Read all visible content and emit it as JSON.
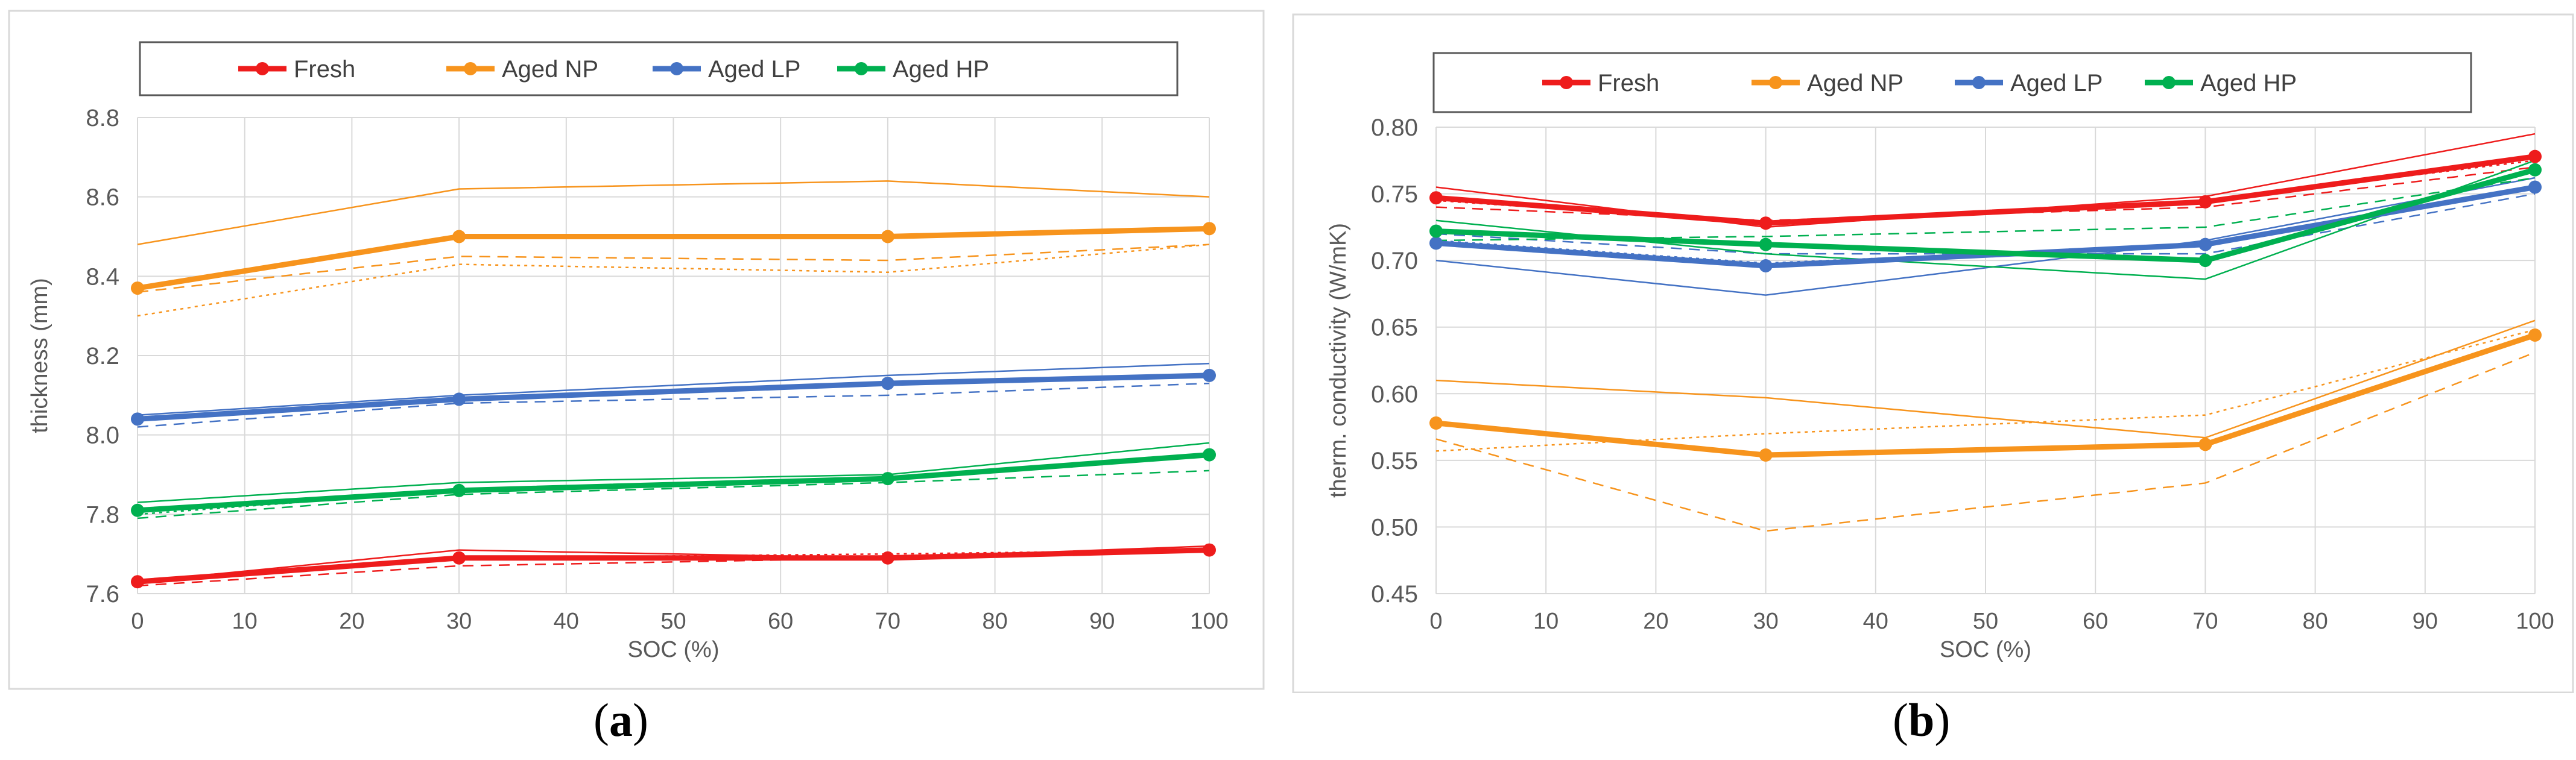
{
  "chart_data": [
    {
      "panel": "a",
      "caption": {
        "open": "(",
        "letter": "a",
        "close": ")"
      },
      "type": "line",
      "title": "",
      "xlabel": "SOC (%)",
      "ylabel": "thickness (mm)",
      "xlim": [
        0,
        100
      ],
      "ylim": [
        7.6,
        8.8
      ],
      "xticks": [
        "0",
        "10",
        "20",
        "30",
        "40",
        "50",
        "60",
        "70",
        "80",
        "90",
        "100"
      ],
      "yticks": [
        "7.6",
        "7.8",
        "8.0",
        "8.2",
        "8.4",
        "8.6",
        "8.8"
      ],
      "grid": true,
      "legend": "top",
      "x": [
        0,
        30,
        70,
        100
      ],
      "series": [
        {
          "name": "Fresh",
          "color": "#ee1c1c",
          "values": [
            7.63,
            7.69,
            7.69,
            7.71
          ],
          "samples": [
            [
              7.63,
              7.71,
              7.69,
              7.72
            ],
            [
              7.62,
              7.67,
              7.69,
              7.71
            ],
            [
              7.63,
              7.69,
              7.7,
              7.71
            ]
          ]
        },
        {
          "name": "Aged NP",
          "color": "#f7941d",
          "values": [
            8.37,
            8.5,
            8.5,
            8.52
          ],
          "samples": [
            [
              8.48,
              8.62,
              8.64,
              8.6
            ],
            [
              8.36,
              8.45,
              8.44,
              8.48
            ],
            [
              8.3,
              8.43,
              8.41,
              8.48
            ]
          ]
        },
        {
          "name": "Aged LP",
          "color": "#4472c4",
          "values": [
            8.04,
            8.09,
            8.13,
            8.15
          ],
          "samples": [
            [
              8.05,
              8.1,
              8.15,
              8.18
            ],
            [
              8.02,
              8.08,
              8.1,
              8.13
            ],
            [
              8.04,
              8.09,
              8.13,
              8.15
            ]
          ]
        },
        {
          "name": "Aged HP",
          "color": "#00b050",
          "values": [
            7.81,
            7.86,
            7.89,
            7.95
          ],
          "samples": [
            [
              7.83,
              7.88,
              7.9,
              7.98
            ],
            [
              7.79,
              7.85,
              7.88,
              7.91
            ],
            [
              7.8,
              7.86,
              7.89,
              7.95
            ]
          ]
        }
      ]
    },
    {
      "panel": "b",
      "caption": {
        "open": "(",
        "letter": "b",
        "close": ")"
      },
      "type": "line",
      "title": "",
      "xlabel": "SOC (%)",
      "ylabel": "therm. conductivity (W/mK)",
      "xlim": [
        0,
        100
      ],
      "ylim": [
        0.45,
        0.8
      ],
      "xticks": [
        "0",
        "10",
        "20",
        "30",
        "40",
        "50",
        "60",
        "70",
        "80",
        "90",
        "100"
      ],
      "yticks": [
        "0.45",
        "0.50",
        "0.55",
        "0.60",
        "0.65",
        "0.70",
        "0.75",
        "0.80"
      ],
      "grid": true,
      "legend": "top",
      "x": [
        0,
        30,
        70,
        100
      ],
      "series": [
        {
          "name": "Fresh",
          "color": "#ee1c1c",
          "values": [
            0.747,
            0.728,
            0.744,
            0.778
          ],
          "samples": [
            [
              0.755,
              0.725,
              0.748,
              0.795
            ],
            [
              0.74,
              0.73,
              0.74,
              0.77
            ],
            [
              0.745,
              0.728,
              0.745,
              0.775
            ]
          ]
        },
        {
          "name": "Aged NP",
          "color": "#f7941d",
          "values": [
            0.578,
            0.554,
            0.562,
            0.644
          ],
          "samples": [
            [
              0.61,
              0.597,
              0.567,
              0.655
            ],
            [
              0.566,
              0.497,
              0.533,
              0.631
            ],
            [
              0.557,
              0.57,
              0.584,
              0.648
            ]
          ]
        },
        {
          "name": "Aged LP",
          "color": "#4472c4",
          "values": [
            0.713,
            0.696,
            0.712,
            0.755
          ],
          "samples": [
            [
              0.7,
              0.674,
              0.715,
              0.762
            ],
            [
              0.72,
              0.705,
              0.705,
              0.75
            ],
            [
              0.715,
              0.698,
              0.712,
              0.756
            ]
          ]
        },
        {
          "name": "Aged HP",
          "color": "#00b050",
          "values": [
            0.722,
            0.712,
            0.7,
            0.768
          ],
          "samples": [
            [
              0.73,
              0.705,
              0.686,
              0.775
            ],
            [
              0.715,
              0.718,
              0.725,
              0.762
            ],
            [
              0.722,
              0.712,
              0.7,
              0.768
            ]
          ]
        }
      ]
    }
  ]
}
